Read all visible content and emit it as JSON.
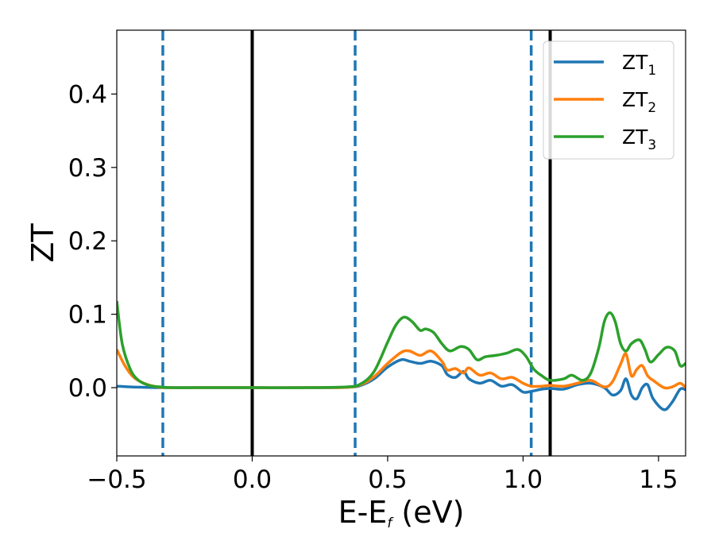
{
  "chart_data": {
    "type": "line",
    "title": "",
    "xlabel": {
      "main": "E-E",
      "sub": "f",
      "suffix": " (eV)"
    },
    "ylabel": "ZT",
    "xlim": [
      -0.5,
      1.6
    ],
    "ylim": [
      -0.093,
      0.487
    ],
    "x_ticks": [
      -0.5,
      0.0,
      0.5,
      1.0,
      1.5
    ],
    "x_tick_labels": [
      "−0.5",
      "0.0",
      "0.5",
      "1.0",
      "1.5"
    ],
    "y_ticks": [
      0.0,
      0.1,
      0.2,
      0.3,
      0.4
    ],
    "y_tick_labels": [
      "0.0",
      "0.1",
      "0.2",
      "0.3",
      "0.4"
    ],
    "grid": false,
    "legend_position": "top-right",
    "series": [
      {
        "name": "ZT",
        "name_sub": "1",
        "color": "#1f77b4",
        "x": [
          -0.5,
          -0.45,
          -0.4,
          -0.33,
          -0.2,
          0.0,
          0.2,
          0.35,
          0.4,
          0.45,
          0.5,
          0.55,
          0.58,
          0.62,
          0.66,
          0.7,
          0.72,
          0.75,
          0.78,
          0.8,
          0.84,
          0.88,
          0.92,
          0.96,
          1.0,
          1.03,
          1.07,
          1.1,
          1.15,
          1.2,
          1.25,
          1.3,
          1.33,
          1.36,
          1.38,
          1.4,
          1.42,
          1.44,
          1.46,
          1.48,
          1.52,
          1.55,
          1.58,
          1.6
        ],
        "y": [
          0.002,
          0.001,
          0.0005,
          0.0,
          0.0,
          0.0,
          0.0,
          0.0005,
          0.003,
          0.012,
          0.028,
          0.038,
          0.036,
          0.033,
          0.036,
          0.03,
          0.018,
          0.014,
          0.022,
          0.012,
          0.006,
          0.01,
          0.002,
          0.004,
          -0.006,
          -0.005,
          -0.002,
          -0.001,
          -0.002,
          0.004,
          0.006,
          0.0,
          -0.01,
          -0.004,
          0.012,
          -0.01,
          -0.015,
          0.0,
          0.004,
          -0.015,
          -0.03,
          -0.02,
          -0.002,
          -0.003
        ]
      },
      {
        "name": "ZT",
        "name_sub": "2",
        "color": "#ff7f0e",
        "x": [
          -0.5,
          -0.47,
          -0.44,
          -0.4,
          -0.35,
          -0.3,
          -0.2,
          0.0,
          0.2,
          0.35,
          0.4,
          0.45,
          0.5,
          0.55,
          0.58,
          0.62,
          0.66,
          0.7,
          0.72,
          0.75,
          0.78,
          0.8,
          0.84,
          0.88,
          0.92,
          0.96,
          1.0,
          1.03,
          1.07,
          1.1,
          1.15,
          1.2,
          1.25,
          1.3,
          1.33,
          1.36,
          1.38,
          1.4,
          1.42,
          1.44,
          1.46,
          1.48,
          1.52,
          1.55,
          1.58,
          1.6
        ],
        "y": [
          0.052,
          0.03,
          0.015,
          0.006,
          0.001,
          0.0,
          0.0,
          0.0,
          0.0,
          0.0005,
          0.004,
          0.015,
          0.033,
          0.048,
          0.05,
          0.044,
          0.05,
          0.036,
          0.024,
          0.026,
          0.02,
          0.027,
          0.017,
          0.02,
          0.012,
          0.014,
          0.006,
          0.002,
          0.002,
          0.003,
          0.002,
          0.006,
          0.01,
          0.001,
          0.008,
          0.032,
          0.046,
          0.016,
          0.025,
          0.03,
          0.016,
          0.01,
          0.0,
          0.001,
          0.006,
          0.0
        ]
      },
      {
        "name": "ZT",
        "name_sub": "3",
        "color": "#2ca02c",
        "x": [
          -0.5,
          -0.48,
          -0.45,
          -0.42,
          -0.38,
          -0.34,
          -0.3,
          -0.2,
          0.0,
          0.2,
          0.35,
          0.4,
          0.45,
          0.5,
          0.53,
          0.56,
          0.59,
          0.62,
          0.64,
          0.67,
          0.7,
          0.73,
          0.77,
          0.8,
          0.83,
          0.86,
          0.9,
          0.94,
          0.98,
          1.01,
          1.04,
          1.07,
          1.1,
          1.15,
          1.18,
          1.22,
          1.25,
          1.28,
          1.3,
          1.32,
          1.34,
          1.36,
          1.38,
          1.4,
          1.43,
          1.45,
          1.47,
          1.5,
          1.53,
          1.56,
          1.58,
          1.6
        ],
        "y": [
          0.118,
          0.06,
          0.025,
          0.01,
          0.003,
          0.001,
          0.0,
          0.0,
          0.0,
          0.0,
          0.001,
          0.005,
          0.022,
          0.062,
          0.085,
          0.096,
          0.09,
          0.078,
          0.08,
          0.075,
          0.06,
          0.05,
          0.056,
          0.052,
          0.038,
          0.042,
          0.044,
          0.047,
          0.052,
          0.043,
          0.025,
          0.016,
          0.01,
          0.012,
          0.017,
          0.01,
          0.02,
          0.055,
          0.09,
          0.102,
          0.09,
          0.06,
          0.05,
          0.06,
          0.065,
          0.052,
          0.035,
          0.045,
          0.055,
          0.05,
          0.03,
          0.033
        ]
      }
    ],
    "vertical_lines": [
      {
        "x": -0.33,
        "color": "#1f77b4",
        "style": "dashed"
      },
      {
        "x": 0.0,
        "color": "#000000",
        "style": "solid"
      },
      {
        "x": 0.38,
        "color": "#1f77b4",
        "style": "dashed"
      },
      {
        "x": 1.03,
        "color": "#1f77b4",
        "style": "dashed"
      },
      {
        "x": 1.1,
        "color": "#000000",
        "style": "solid"
      }
    ]
  }
}
